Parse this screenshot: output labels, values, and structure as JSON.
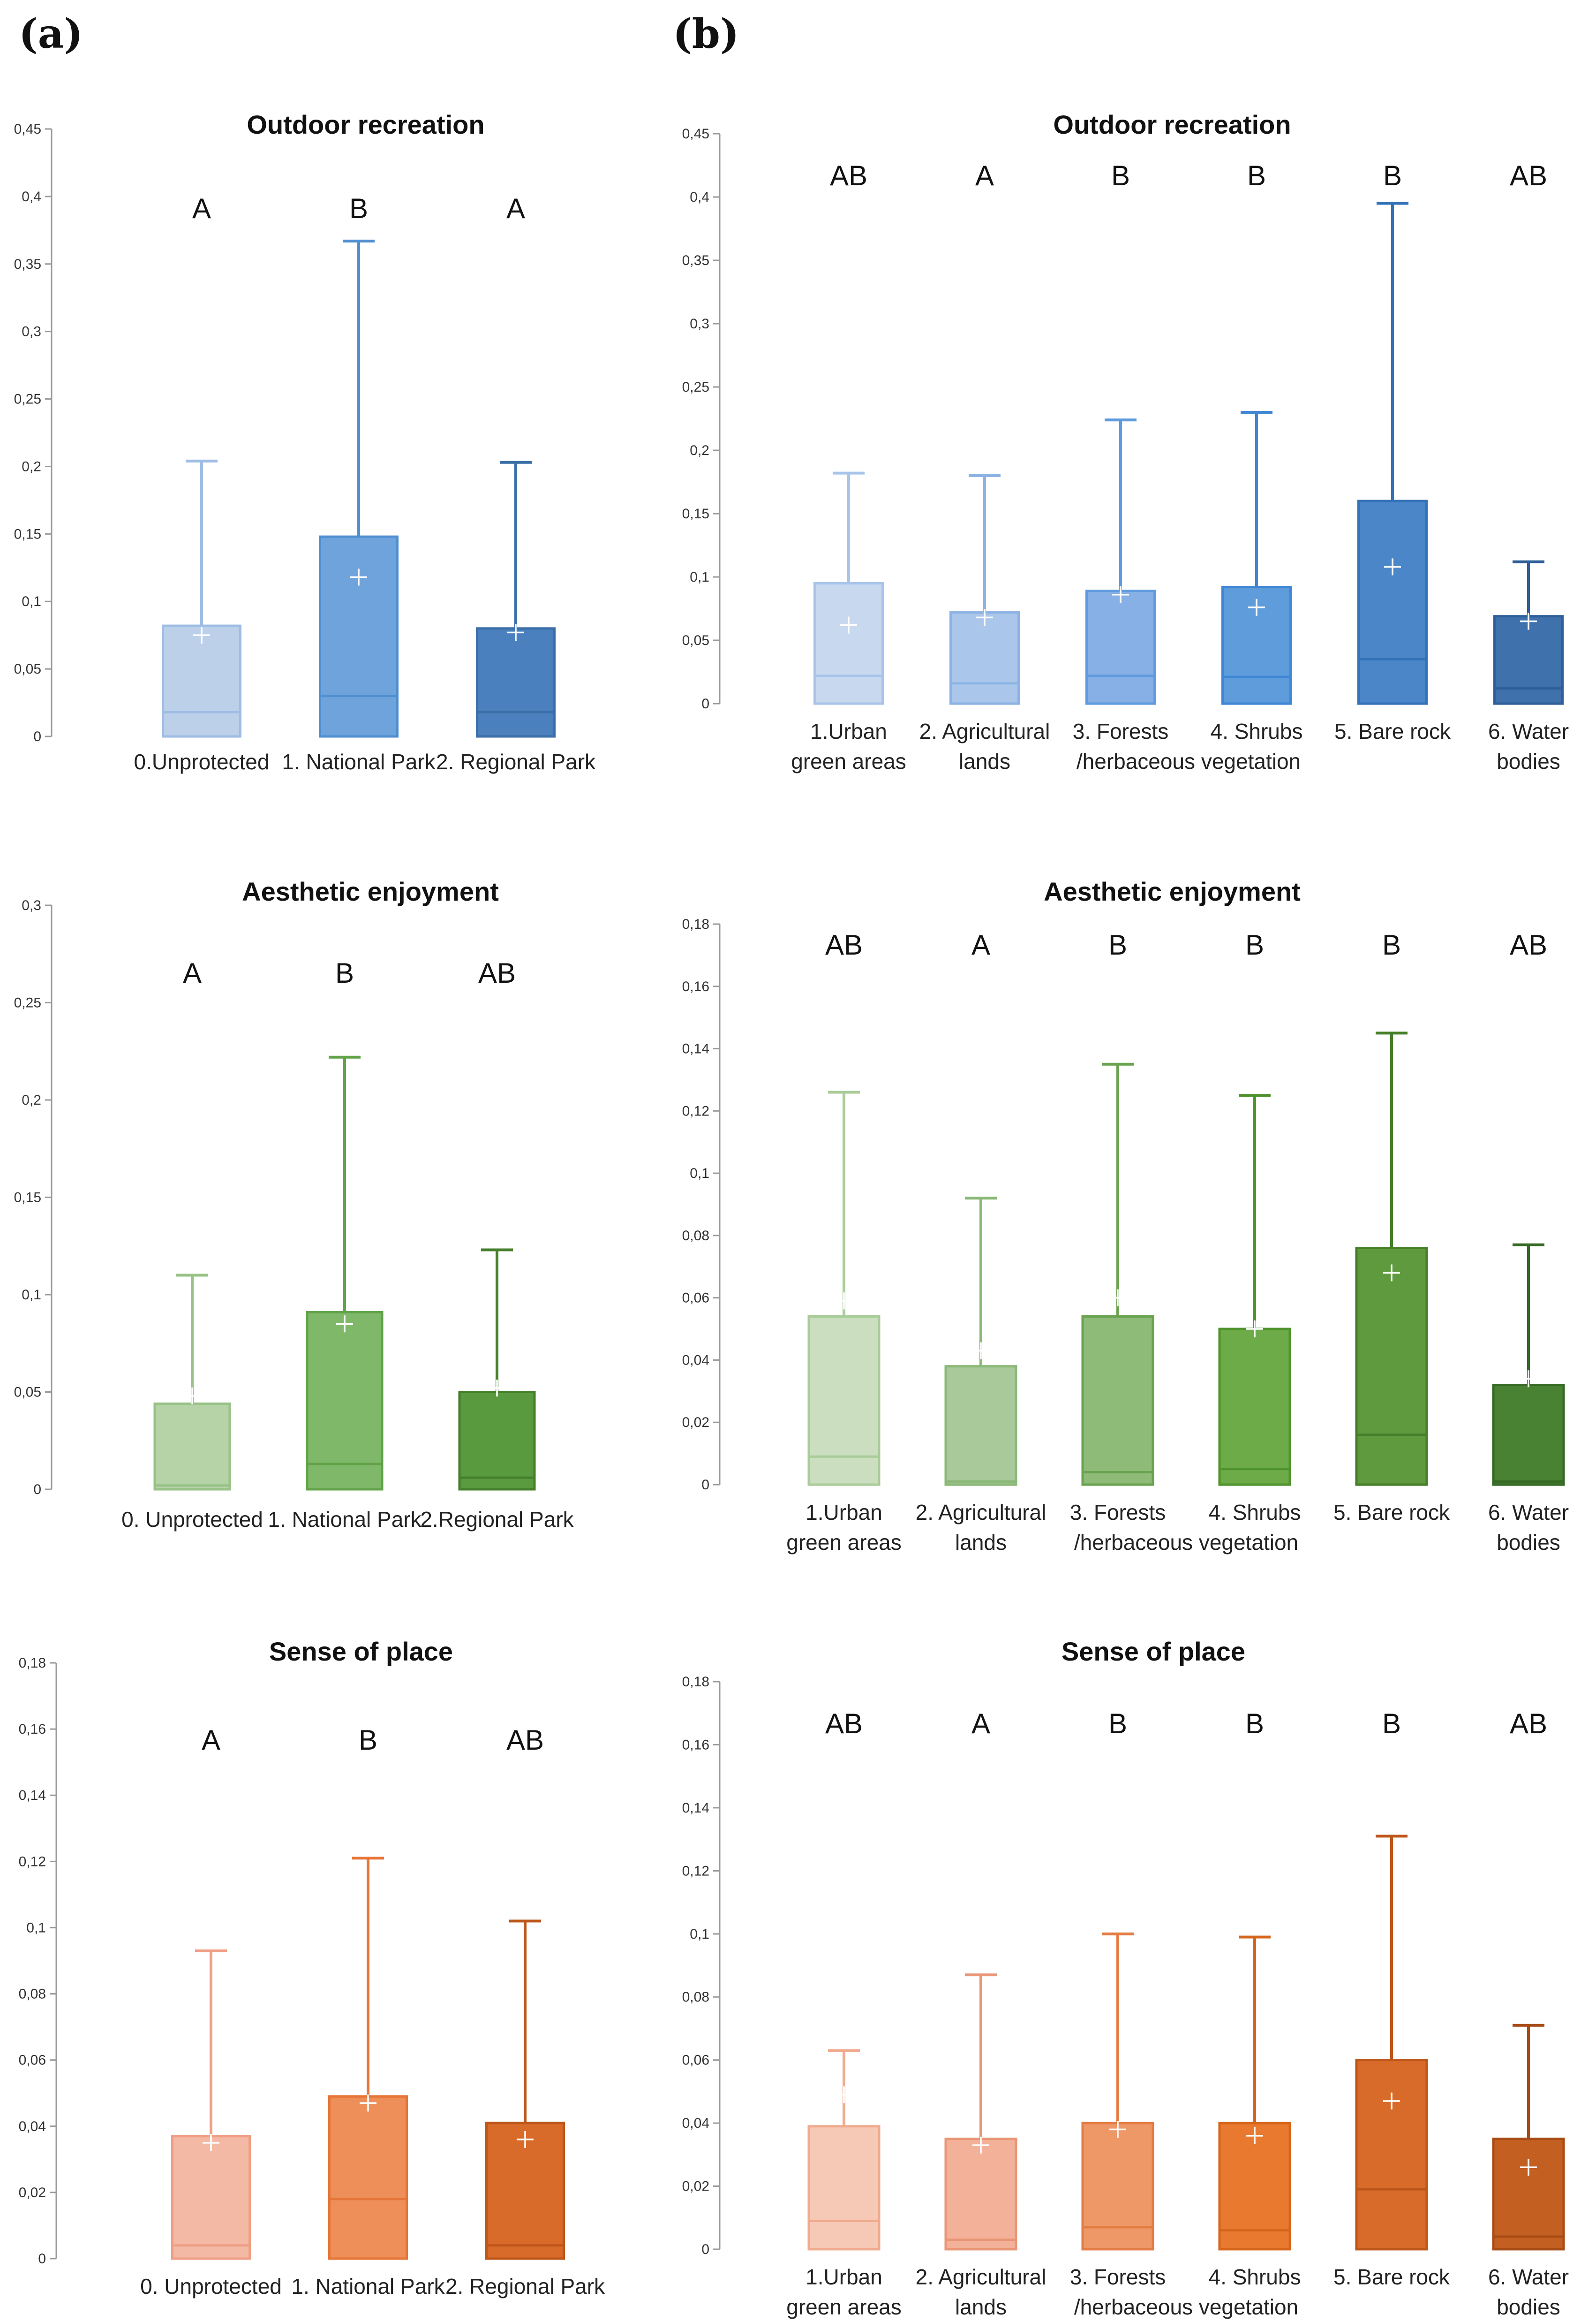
{
  "panel_labels": {
    "a": "(a)",
    "b": "(b)"
  },
  "chart_data": [
    {
      "id": "a-outdoor",
      "type": "box",
      "title": "Outdoor recreation",
      "ylim": [
        0,
        0.45
      ],
      "ticks": [
        "0",
        "0,05",
        "0,1",
        "0,15",
        "0,2",
        "0,25",
        "0,3",
        "0,35",
        "0,4",
        "0,45"
      ],
      "tick_step": 0.05,
      "categories": [
        [
          "0.Unprotected"
        ],
        [
          "1. National Park"
        ],
        [
          "2. Regional Park"
        ]
      ],
      "letters": [
        "A",
        "B",
        "A"
      ],
      "q1": [
        0,
        0,
        0
      ],
      "median": [
        0.018,
        0.03,
        0.018
      ],
      "q3": [
        0.082,
        0.148,
        0.08
      ],
      "max": [
        0.204,
        0.367,
        0.203
      ],
      "mean": [
        0.075,
        0.118,
        0.077
      ],
      "colors": [
        "#bcd0ea",
        "#6ea3dc",
        "#4a80bd"
      ],
      "edge_colors": [
        "#9fbde4",
        "#4f8fd1",
        "#3b6fa8"
      ]
    },
    {
      "id": "b-outdoor",
      "type": "box",
      "title": "Outdoor recreation",
      "ylim": [
        0,
        0.45
      ],
      "ticks": [
        "0",
        "0,05",
        "0,1",
        "0,15",
        "0,2",
        "0,25",
        "0,3",
        "0,35",
        "0,4",
        "0,45"
      ],
      "tick_step": 0.05,
      "categories": [
        [
          "1.Urban",
          "green areas"
        ],
        [
          "2. Agricultural",
          "lands"
        ],
        [
          "3. Forests"
        ],
        [
          "4. Shrubs"
        ],
        [
          "5. Bare rock"
        ],
        [
          "6. Water",
          "bodies"
        ]
      ],
      "extra_label": "/herbaceous vegetation",
      "letters": [
        "AB",
        "A",
        "B",
        "B",
        "B",
        "AB"
      ],
      "q1": [
        0,
        0,
        0,
        0,
        0,
        0
      ],
      "median": [
        0.022,
        0.016,
        0.022,
        0.021,
        0.035,
        0.012
      ],
      "q3": [
        0.095,
        0.072,
        0.089,
        0.092,
        0.16,
        0.069
      ],
      "max": [
        0.182,
        0.18,
        0.224,
        0.23,
        0.395,
        0.112
      ],
      "mean": [
        0.062,
        0.068,
        0.086,
        0.076,
        0.108,
        0.065
      ],
      "colors": [
        "#c8d8ef",
        "#aac6ea",
        "#87b1e6",
        "#5f9cdb",
        "#4a86c8",
        "#3f72ad"
      ],
      "edge_colors": [
        "#a8c4ea",
        "#8cb3e4",
        "#5f9bde",
        "#3f86d4",
        "#3472b8",
        "#2f5f98"
      ]
    },
    {
      "id": "a-aesthetic",
      "type": "box",
      "title": "Aesthetic enjoyment",
      "ylim": [
        0,
        0.3
      ],
      "ticks": [
        "0",
        "0,05",
        "0,1",
        "0,15",
        "0,2",
        "0,25",
        "0,3"
      ],
      "tick_step": 0.05,
      "categories": [
        [
          "0. Unprotected"
        ],
        [
          "1. National Park"
        ],
        [
          "2.Regional Park"
        ]
      ],
      "letters": [
        "A",
        "B",
        "AB"
      ],
      "q1": [
        0,
        0,
        0
      ],
      "median": [
        0.002,
        0.013,
        0.006
      ],
      "q3": [
        0.044,
        0.091,
        0.05
      ],
      "max": [
        0.11,
        0.222,
        0.123
      ],
      "mean": [
        0.048,
        0.085,
        0.052
      ],
      "colors": [
        "#b6d3a8",
        "#80b869",
        "#5a9a3e"
      ],
      "edge_colors": [
        "#97c285",
        "#62a34a",
        "#447f2b"
      ]
    },
    {
      "id": "b-aesthetic",
      "type": "box",
      "title": "Aesthetic enjoyment",
      "ylim": [
        0,
        0.18
      ],
      "ticks": [
        "0",
        "0,02",
        "0,04",
        "0,06",
        "0,08",
        "0,1",
        "0,12",
        "0,14",
        "0,16",
        "0,18"
      ],
      "tick_step": 0.02,
      "categories": [
        [
          "1.Urban",
          "green areas"
        ],
        [
          "2. Agricultural",
          "lands"
        ],
        [
          "3. Forests"
        ],
        [
          "4. Shrubs"
        ],
        [
          "5. Bare rock"
        ],
        [
          "6. Water",
          "bodies"
        ]
      ],
      "extra_label": "/herbaceous vegetation",
      "letters": [
        "AB",
        "A",
        "B",
        "B",
        "B",
        "AB"
      ],
      "q1": [
        0,
        0,
        0,
        0,
        0,
        0
      ],
      "median": [
        0.009,
        0.001,
        0.004,
        0.005,
        0.016,
        0.001
      ],
      "q3": [
        0.054,
        0.038,
        0.054,
        0.05,
        0.076,
        0.032
      ],
      "max": [
        0.126,
        0.092,
        0.135,
        0.125,
        0.145,
        0.077
      ],
      "mean": [
        0.059,
        0.043,
        0.06,
        0.05,
        0.068,
        0.034
      ],
      "colors": [
        "#cbdfc0",
        "#aac99a",
        "#8fbb78",
        "#6cab47",
        "#5f9a3e",
        "#4a8234"
      ],
      "edge_colors": [
        "#a9cc98",
        "#8ab877",
        "#6aa350",
        "#4f932c",
        "#457f2a",
        "#366a24"
      ]
    },
    {
      "id": "a-sense",
      "type": "box",
      "title": "Sense of place",
      "ylim": [
        0,
        0.18
      ],
      "ticks": [
        "0",
        "0,02",
        "0,04",
        "0,06",
        "0,08",
        "0,1",
        "0,12",
        "0,14",
        "0,16",
        "0,18"
      ],
      "tick_step": 0.02,
      "categories": [
        [
          "0. Unprotected"
        ],
        [
          "1. National Park"
        ],
        [
          "2. Regional Park"
        ]
      ],
      "letters": [
        "A",
        "B",
        "AB"
      ],
      "q1": [
        0,
        0,
        0
      ],
      "median": [
        0.004,
        0.018,
        0.004
      ],
      "q3": [
        0.037,
        0.049,
        0.041
      ],
      "max": [
        0.093,
        0.121,
        0.102
      ],
      "mean": [
        0.035,
        0.047,
        0.036
      ],
      "colors": [
        "#f4b9a5",
        "#ee8f5a",
        "#d96b2a"
      ],
      "edge_colors": [
        "#ef9f86",
        "#e67537",
        "#bd561a"
      ]
    },
    {
      "id": "b-sense",
      "type": "box",
      "title": "Sense of place",
      "ylim": [
        0,
        0.18
      ],
      "ticks": [
        "0",
        "0,02",
        "0,04",
        "0,06",
        "0,08",
        "0,1",
        "0,12",
        "0,14",
        "0,16",
        "0,18"
      ],
      "tick_step": 0.02,
      "categories": [
        [
          "1.Urban",
          "green areas"
        ],
        [
          "2. Agricultural",
          "lands"
        ],
        [
          "3. Forests"
        ],
        [
          "4. Shrubs"
        ],
        [
          "5. Bare rock"
        ],
        [
          "6. Water",
          "bodies"
        ]
      ],
      "extra_label": "/herbaceous vegetation",
      "letters": [
        "AB",
        "A",
        "B",
        "B",
        "B",
        "AB"
      ],
      "q1": [
        0,
        0,
        0,
        0,
        0,
        0
      ],
      "median": [
        0.009,
        0.003,
        0.007,
        0.006,
        0.019,
        0.004
      ],
      "q3": [
        0.039,
        0.035,
        0.04,
        0.04,
        0.06,
        0.035
      ],
      "max": [
        0.063,
        0.087,
        0.1,
        0.099,
        0.131,
        0.071
      ],
      "mean": [
        0.049,
        0.033,
        0.038,
        0.036,
        0.047,
        0.026
      ],
      "colors": [
        "#f6c9b6",
        "#f2b198",
        "#ee9868",
        "#e8792e",
        "#d96b2a",
        "#c45f22"
      ],
      "edge_colors": [
        "#f0aa8e",
        "#e99676",
        "#e47c44",
        "#d6651c",
        "#bd561a",
        "#a84c16"
      ]
    }
  ]
}
